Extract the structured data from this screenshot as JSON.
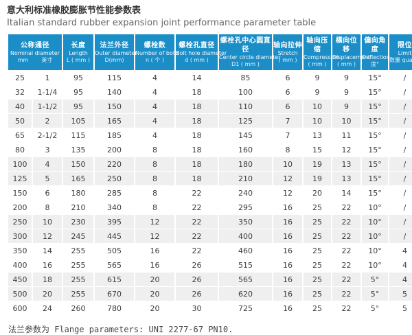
{
  "page": {
    "title_zh": "意大利标准橡胶膨胀节性能参数表",
    "title_en": "Italian standard rubber expansion joint performance parameter table",
    "footer_note": "法兰参数为 Flange parameters: UNI 2277-67 PN10."
  },
  "colors": {
    "header_bg": "#1b8ec8",
    "header_text": "#ffffff",
    "alt_row_bg": "#efefef",
    "text": "#3c3c3c"
  },
  "table": {
    "columns": [
      {
        "zh": "公称通径",
        "en": "Nominal diameter",
        "unit_mm": "mm",
        "unit_inch": "英寸"
      },
      {
        "zh": "长度",
        "en": "Length",
        "unit": "L ( mm )"
      },
      {
        "zh": "法兰外径",
        "en": "Outer diameter",
        "unit": "D(mm)"
      },
      {
        "zh": "螺栓数",
        "en": "Number of bolts",
        "unit": "n ( 个 )"
      },
      {
        "zh": "螺栓孔直径",
        "en": "Bolt hole diameter",
        "unit": "d ( mm )"
      },
      {
        "zh": "螺栓孔中心圆直径",
        "en": "Center circle diameter",
        "unit": "D1 ( mm )"
      },
      {
        "zh": "轴向拉伸",
        "en": "Stretch",
        "unit": "( mm )"
      },
      {
        "zh": "轴向压缩",
        "en": "Compression",
        "unit": "( mm )"
      },
      {
        "zh": "横向位移",
        "en": "Displacement",
        "unit": "( mm )"
      },
      {
        "zh": "偏向角度",
        "en": "Deflection",
        "unit": "度°"
      },
      {
        "zh": "限位",
        "en": "Limit",
        "unit": "数量 quantity"
      }
    ],
    "rows": [
      [
        "25",
        "1",
        "95",
        "115",
        "4",
        "14",
        "85",
        "6",
        "9",
        "9",
        "15°",
        "/"
      ],
      [
        "32",
        "1-1/4",
        "95",
        "140",
        "4",
        "18",
        "100",
        "6",
        "9",
        "9",
        "15°",
        "/"
      ],
      [
        "40",
        "1-1/2",
        "95",
        "150",
        "4",
        "18",
        "110",
        "6",
        "10",
        "9",
        "15°",
        "/"
      ],
      [
        "50",
        "2",
        "105",
        "165",
        "4",
        "18",
        "125",
        "7",
        "10",
        "10",
        "15°",
        "/"
      ],
      [
        "65",
        "2-1/2",
        "115",
        "185",
        "4",
        "18",
        "145",
        "7",
        "13",
        "11",
        "15°",
        "/"
      ],
      [
        "80",
        "3",
        "135",
        "200",
        "8",
        "18",
        "160",
        "8",
        "15",
        "12",
        "15°",
        "/"
      ],
      [
        "100",
        "4",
        "150",
        "220",
        "8",
        "18",
        "180",
        "10",
        "19",
        "13",
        "15°",
        "/"
      ],
      [
        "125",
        "5",
        "165",
        "250",
        "8",
        "18",
        "210",
        "12",
        "19",
        "13",
        "15°",
        "/"
      ],
      [
        "150",
        "6",
        "180",
        "285",
        "8",
        "22",
        "240",
        "12",
        "20",
        "14",
        "15°",
        "/"
      ],
      [
        "200",
        "8",
        "210",
        "340",
        "8",
        "22",
        "295",
        "16",
        "25",
        "22",
        "10°",
        "/"
      ],
      [
        "250",
        "10",
        "230",
        "395",
        "12",
        "22",
        "350",
        "16",
        "25",
        "22",
        "10°",
        "/"
      ],
      [
        "300",
        "12",
        "245",
        "445",
        "12",
        "22",
        "400",
        "16",
        "25",
        "22",
        "10°",
        "/"
      ],
      [
        "350",
        "14",
        "255",
        "505",
        "16",
        "22",
        "460",
        "16",
        "25",
        "22",
        "10°",
        "4"
      ],
      [
        "400",
        "16",
        "255",
        "565",
        "16",
        "26",
        "515",
        "16",
        "25",
        "22",
        "10°",
        "4"
      ],
      [
        "450",
        "18",
        "255",
        "615",
        "20",
        "26",
        "565",
        "16",
        "25",
        "22",
        "5°",
        "4"
      ],
      [
        "500",
        "20",
        "255",
        "670",
        "20",
        "26",
        "620",
        "16",
        "25",
        "22",
        "5°",
        "5"
      ],
      [
        "600",
        "24",
        "260",
        "780",
        "20",
        "30",
        "725",
        "16",
        "25",
        "22",
        "5°",
        "5"
      ]
    ]
  }
}
